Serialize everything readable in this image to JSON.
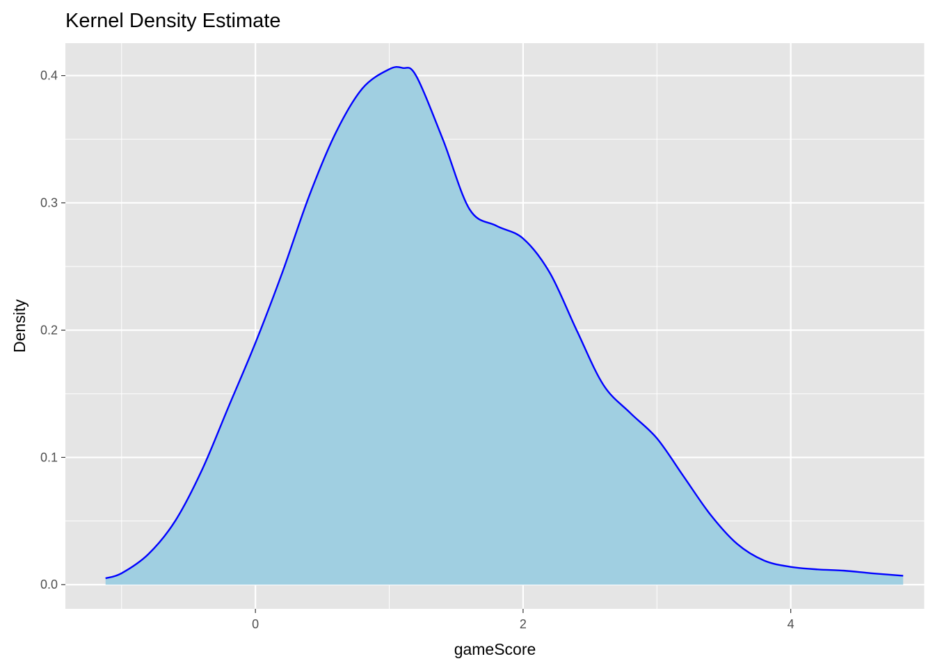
{
  "chart_data": {
    "type": "area",
    "title": "Kernel Density Estimate",
    "xlabel": "gameScore",
    "ylabel": "Density",
    "xlim": [
      -1.42,
      5.0
    ],
    "ylim": [
      -0.019,
      0.4255
    ],
    "x_ticks": [
      0,
      2,
      4
    ],
    "x_minor": [
      -1,
      1,
      3,
      5
    ],
    "y_ticks": [
      0.0,
      0.1,
      0.2,
      0.3,
      0.4
    ],
    "y_tick_labels": [
      "0.0",
      "0.1",
      "0.2",
      "0.3",
      "0.4"
    ],
    "y_minor": [
      0.05,
      0.15,
      0.25,
      0.35
    ],
    "grid": true,
    "colors": {
      "panel": "#e5e5e5",
      "grid": "#ffffff",
      "fill": "#a0cfe1",
      "line": "#0000ff"
    },
    "series": [
      {
        "x": [
          -1.12,
          -1.0,
          -0.8,
          -0.6,
          -0.4,
          -0.2,
          0.0,
          0.2,
          0.4,
          0.6,
          0.8,
          1.0,
          1.1,
          1.2,
          1.4,
          1.6,
          1.8,
          2.0,
          2.2,
          2.4,
          2.6,
          2.8,
          3.0,
          3.2,
          3.4,
          3.6,
          3.8,
          4.0,
          4.2,
          4.4,
          4.6,
          4.84
        ],
        "y": [
          0.005,
          0.009,
          0.024,
          0.05,
          0.09,
          0.14,
          0.19,
          0.245,
          0.305,
          0.355,
          0.39,
          0.405,
          0.406,
          0.4,
          0.35,
          0.295,
          0.282,
          0.272,
          0.245,
          0.2,
          0.157,
          0.135,
          0.115,
          0.085,
          0.055,
          0.032,
          0.019,
          0.014,
          0.012,
          0.011,
          0.009,
          0.007
        ]
      }
    ]
  }
}
